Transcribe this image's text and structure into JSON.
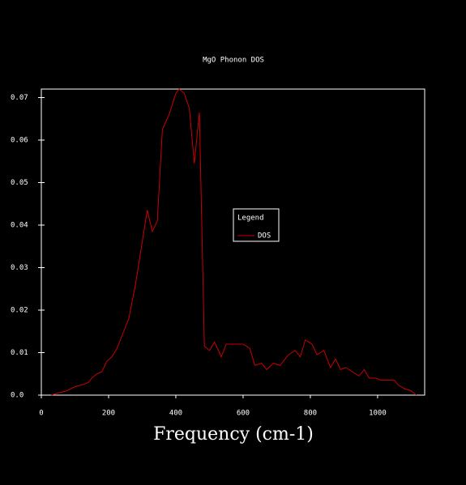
{
  "chart_data": {
    "type": "line",
    "title": "MgO Phonon DOS",
    "x_label": "Frequency (cm-1)",
    "x": [
      30,
      50,
      75,
      100,
      125,
      140,
      150,
      165,
      180,
      195,
      210,
      225,
      240,
      260,
      280,
      300,
      315,
      330,
      345,
      360,
      380,
      400,
      410,
      425,
      440,
      455,
      470,
      485,
      500,
      515,
      535,
      550,
      575,
      600,
      620,
      635,
      655,
      670,
      690,
      710,
      735,
      755,
      770,
      785,
      805,
      820,
      840,
      860,
      875,
      890,
      905,
      925,
      945,
      960,
      975,
      995,
      1010,
      1030,
      1050,
      1060,
      1080,
      1100,
      1115
    ],
    "series": [
      {
        "name": "DOS",
        "color": "#cc0000",
        "values": [
          0,
          0.0005,
          0.001,
          0.002,
          0.0025,
          0.003,
          0.004,
          0.005,
          0.0055,
          0.008,
          0.009,
          0.011,
          0.014,
          0.018,
          0.026,
          0.036,
          0.0435,
          0.0385,
          0.041,
          0.0625,
          0.066,
          0.071,
          0.072,
          0.071,
          0.0675,
          0.0545,
          0.0665,
          0.0115,
          0.0105,
          0.0125,
          0.009,
          0.012,
          0.012,
          0.012,
          0.011,
          0.007,
          0.0075,
          0.006,
          0.0075,
          0.007,
          0.0095,
          0.0105,
          0.009,
          0.013,
          0.012,
          0.0095,
          0.0105,
          0.0065,
          0.0085,
          0.006,
          0.0065,
          0.0055,
          0.0045,
          0.006,
          0.004,
          0.004,
          0.0035,
          0.0035,
          0.0035,
          0.0025,
          0.0015,
          0.001,
          0
        ]
      }
    ],
    "legend_title": "Legend",
    "xlim": [
      0,
      1140
    ],
    "xticks": [
      0,
      200,
      400,
      600,
      800,
      1000
    ],
    "ylim": [
      0,
      0.072
    ],
    "yticks": [
      {
        "value": 0,
        "label": "0.0"
      },
      0.01,
      0.02,
      0.03,
      0.04,
      0.05,
      0.06,
      0.07
    ]
  }
}
